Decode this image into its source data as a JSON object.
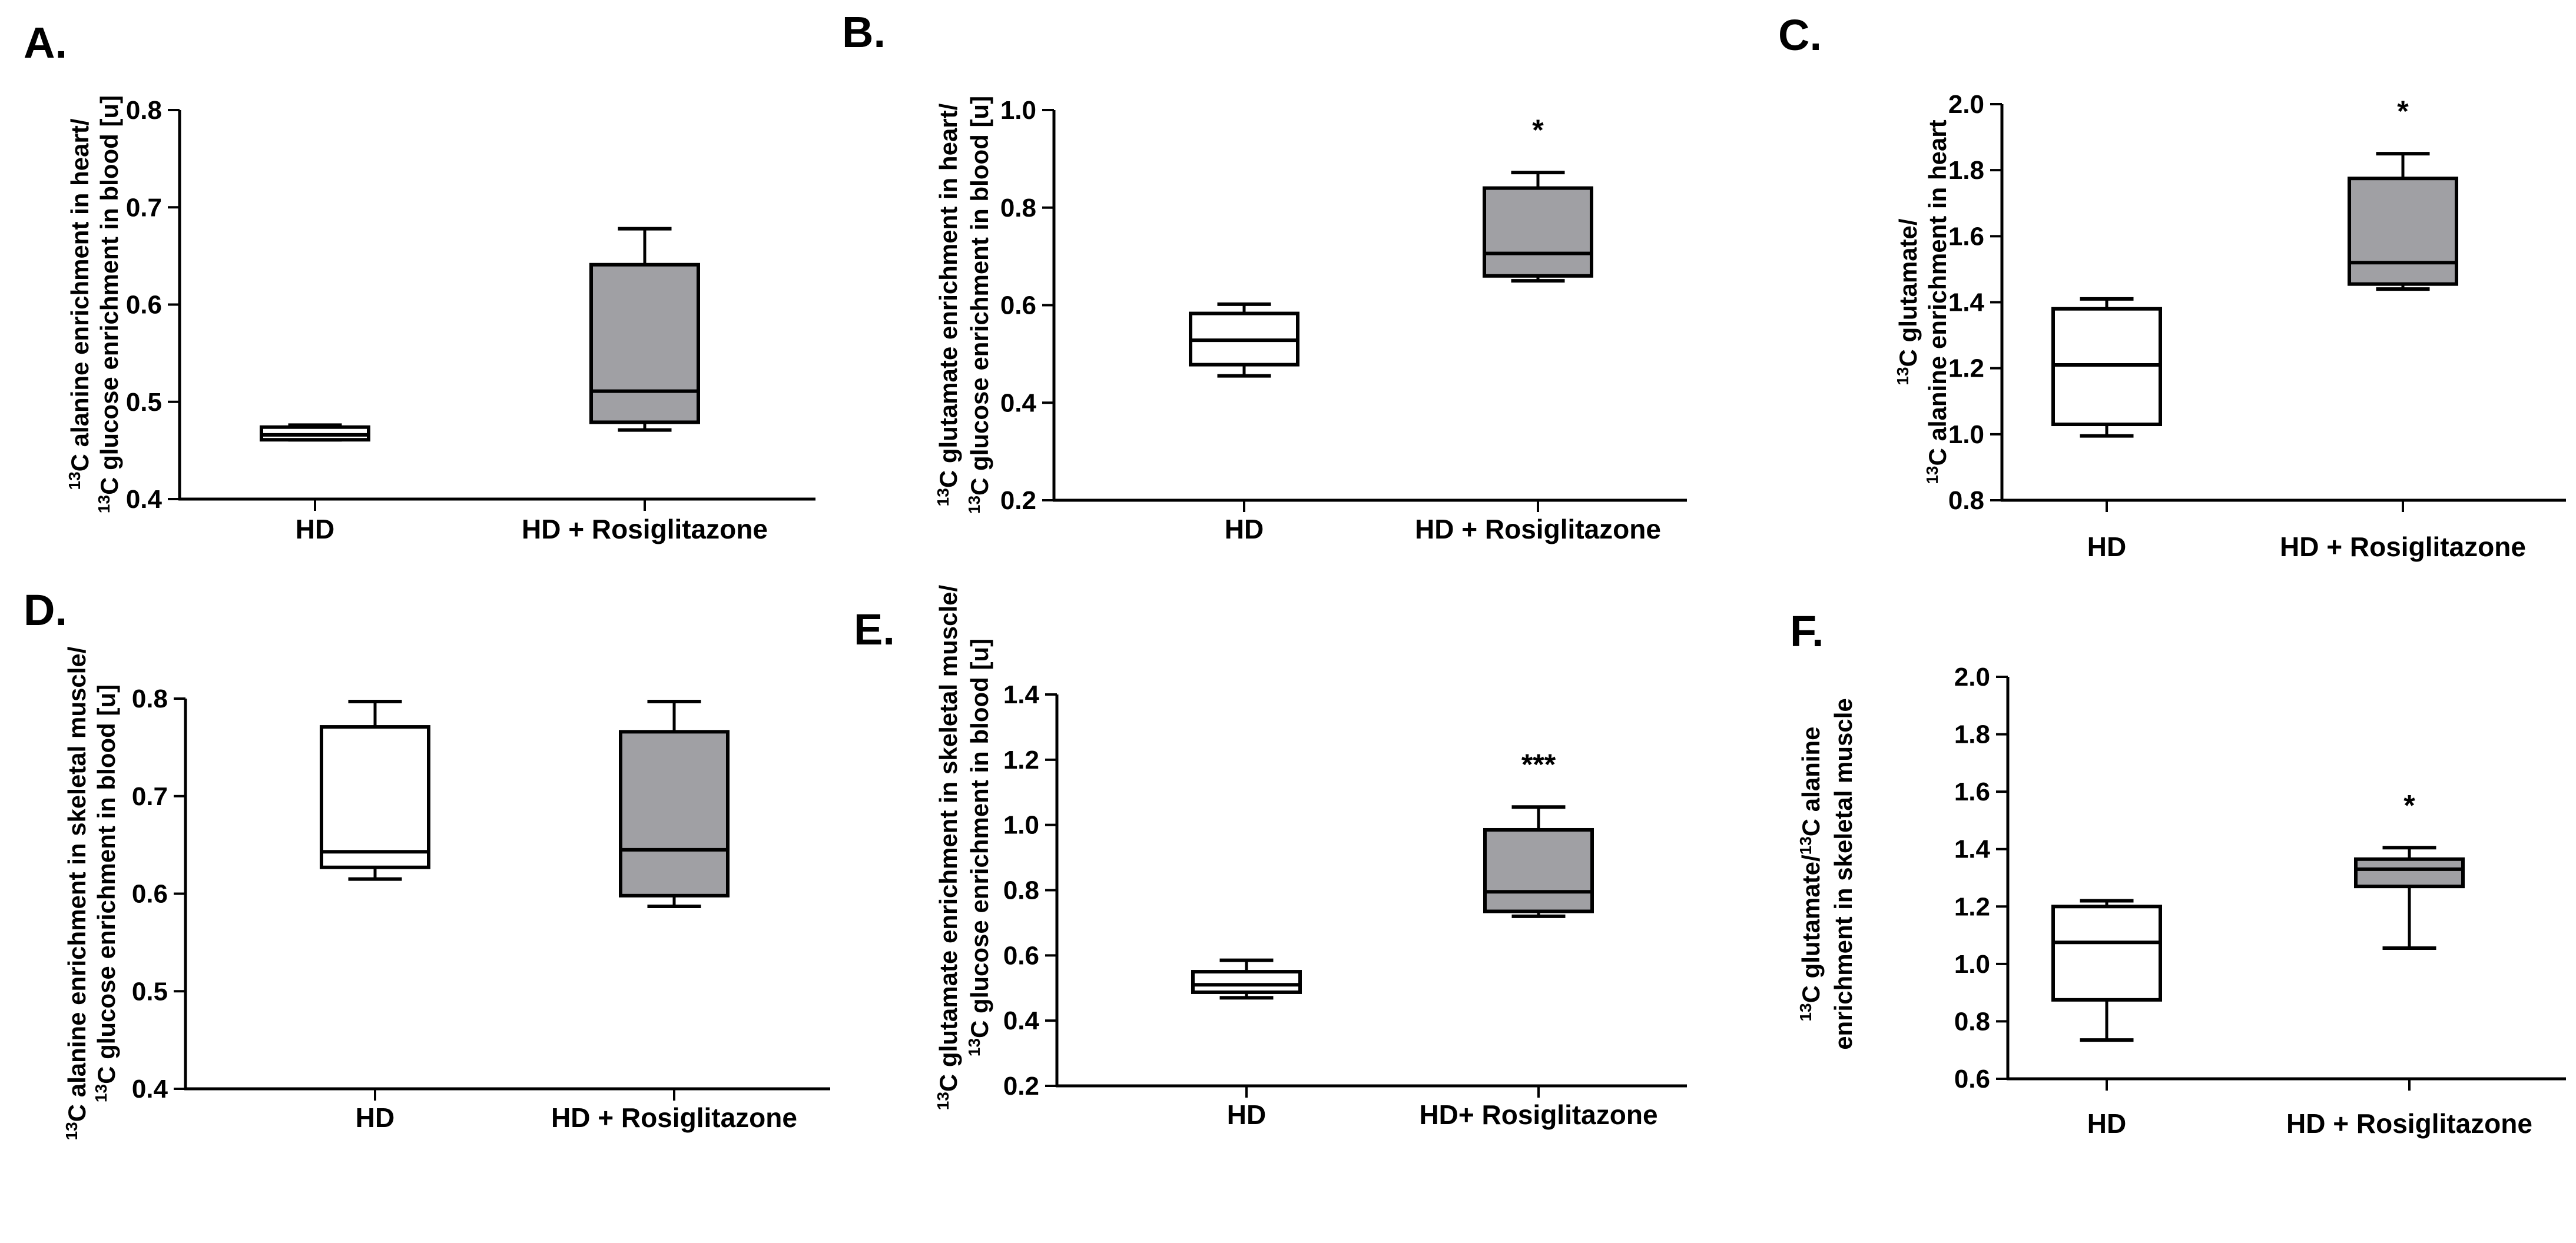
{
  "colors": {
    "control_fill": "#ffffff",
    "treated_fill": "#a0a0a4",
    "stroke": "#000000"
  },
  "chart_data": [
    {
      "panel": "A.",
      "type": "boxplot",
      "ylabel_lines": [
        {
          "parts": [
            {
              "sup": "13"
            },
            {
              "text": "C alanine enrichment in heart/"
            }
          ]
        },
        {
          "parts": [
            {
              "sup": "13"
            },
            {
              "text": "C glucose enrichment in blood [u]"
            }
          ]
        }
      ],
      "ylim": [
        0.4,
        0.8
      ],
      "yticks": [
        0.4,
        0.5,
        0.6,
        0.7,
        0.8
      ],
      "tick_decimals": 1,
      "categories": [
        "HD",
        "HD + Rosiglitazone"
      ],
      "boxes": [
        {
          "min": 0.461,
          "q1": 0.461,
          "median": 0.466,
          "q3": 0.474,
          "max": 0.476
        },
        {
          "min": 0.471,
          "q1": 0.479,
          "median": 0.511,
          "q3": 0.641,
          "max": 0.678
        }
      ],
      "significance": [
        "",
        ""
      ]
    },
    {
      "panel": "B.",
      "type": "boxplot",
      "ylabel_lines": [
        {
          "parts": [
            {
              "sup": "13"
            },
            {
              "text": "C glutamate enrichment in heart/"
            }
          ]
        },
        {
          "parts": [
            {
              "sup": "13"
            },
            {
              "text": "C glucose  enrichment in blood [u]"
            }
          ]
        }
      ],
      "ylim": [
        0.2,
        1.0
      ],
      "yticks": [
        0.2,
        0.4,
        0.6,
        0.8,
        1.0
      ],
      "tick_decimals": 1,
      "categories": [
        "HD",
        "HD + Rosiglitazone"
      ],
      "boxes": [
        {
          "min": 0.455,
          "q1": 0.478,
          "median": 0.528,
          "q3": 0.583,
          "max": 0.602
        },
        {
          "min": 0.65,
          "q1": 0.66,
          "median": 0.706,
          "q3": 0.84,
          "max": 0.872
        }
      ],
      "significance": [
        "",
        "*"
      ]
    },
    {
      "panel": "C.",
      "type": "boxplot",
      "ylabel_lines": [
        {
          "parts": [
            {
              "sup": "13"
            },
            {
              "text": "C glutamate/"
            }
          ]
        },
        {
          "parts": [
            {
              "sup": "13"
            },
            {
              "text": "C alanine enrichment in heart"
            }
          ]
        }
      ],
      "ylim": [
        0.8,
        2.0
      ],
      "yticks": [
        0.8,
        1.0,
        1.2,
        1.4,
        1.6,
        1.8,
        2.0
      ],
      "tick_decimals": 1,
      "categories": [
        "HD",
        "HD + Rosiglitazone"
      ],
      "boxes": [
        {
          "min": 0.995,
          "q1": 1.03,
          "median": 1.21,
          "q3": 1.38,
          "max": 1.41
        },
        {
          "min": 1.44,
          "q1": 1.455,
          "median": 1.52,
          "q3": 1.775,
          "max": 1.85
        }
      ],
      "significance": [
        "",
        "*"
      ]
    },
    {
      "panel": "D.",
      "type": "boxplot",
      "ylabel_lines": [
        {
          "parts": [
            {
              "sup": "13"
            },
            {
              "text": "C alanine enrichment in skeletal muscle/"
            }
          ]
        },
        {
          "parts": [
            {
              "sup": "13"
            },
            {
              "text": "C glucose enrichment in blood [u]"
            }
          ]
        }
      ],
      "ylim": [
        0.4,
        0.8
      ],
      "yticks": [
        0.4,
        0.5,
        0.6,
        0.7,
        0.8
      ],
      "tick_decimals": 1,
      "categories": [
        "HD",
        "HD + Rosiglitazone"
      ],
      "boxes": [
        {
          "min": 0.615,
          "q1": 0.627,
          "median": 0.643,
          "q3": 0.771,
          "max": 0.797
        },
        {
          "min": 0.587,
          "q1": 0.598,
          "median": 0.645,
          "q3": 0.766,
          "max": 0.797
        }
      ],
      "significance": [
        "",
        ""
      ]
    },
    {
      "panel": "E.",
      "type": "boxplot",
      "ylabel_lines": [
        {
          "parts": [
            {
              "sup": "13"
            },
            {
              "text": "C glutamate enrichment in skeletal muscle/"
            }
          ]
        },
        {
          "parts": [
            {
              "sup": "13"
            },
            {
              "text": "C glucose enrichment in blood [u]"
            }
          ]
        }
      ],
      "ylim": [
        0.2,
        1.4
      ],
      "yticks": [
        0.2,
        0.4,
        0.6,
        0.8,
        1.0,
        1.2,
        1.4
      ],
      "tick_decimals": 1,
      "categories": [
        "HD",
        "HD+ Rosiglitazone"
      ],
      "boxes": [
        {
          "min": 0.47,
          "q1": 0.487,
          "median": 0.51,
          "q3": 0.55,
          "max": 0.585
        },
        {
          "min": 0.72,
          "q1": 0.735,
          "median": 0.795,
          "q3": 0.985,
          "max": 1.055
        }
      ],
      "significance": [
        "",
        "***"
      ]
    },
    {
      "panel": "F.",
      "type": "boxplot",
      "ylabel_lines": [
        {
          "parts": [
            {
              "sup": "13"
            },
            {
              "text": "C glutamate/"
            },
            {
              "sup": "13"
            },
            {
              "text": "C alanine"
            }
          ]
        },
        {
          "parts": [
            {
              "text": "enrichment in skeletal muscle"
            }
          ]
        }
      ],
      "ylim": [
        0.6,
        2.0
      ],
      "yticks": [
        0.6,
        0.8,
        1.0,
        1.2,
        1.4,
        1.6,
        1.8,
        2.0
      ],
      "tick_decimals": 1,
      "categories": [
        "HD",
        "HD + Rosiglitazone"
      ],
      "boxes": [
        {
          "min": 0.735,
          "q1": 0.875,
          "median": 1.075,
          "q3": 1.2,
          "max": 1.22
        },
        {
          "min": 1.055,
          "q1": 1.27,
          "median": 1.33,
          "q3": 1.365,
          "max": 1.405
        }
      ],
      "significance": [
        "",
        "*"
      ]
    }
  ]
}
